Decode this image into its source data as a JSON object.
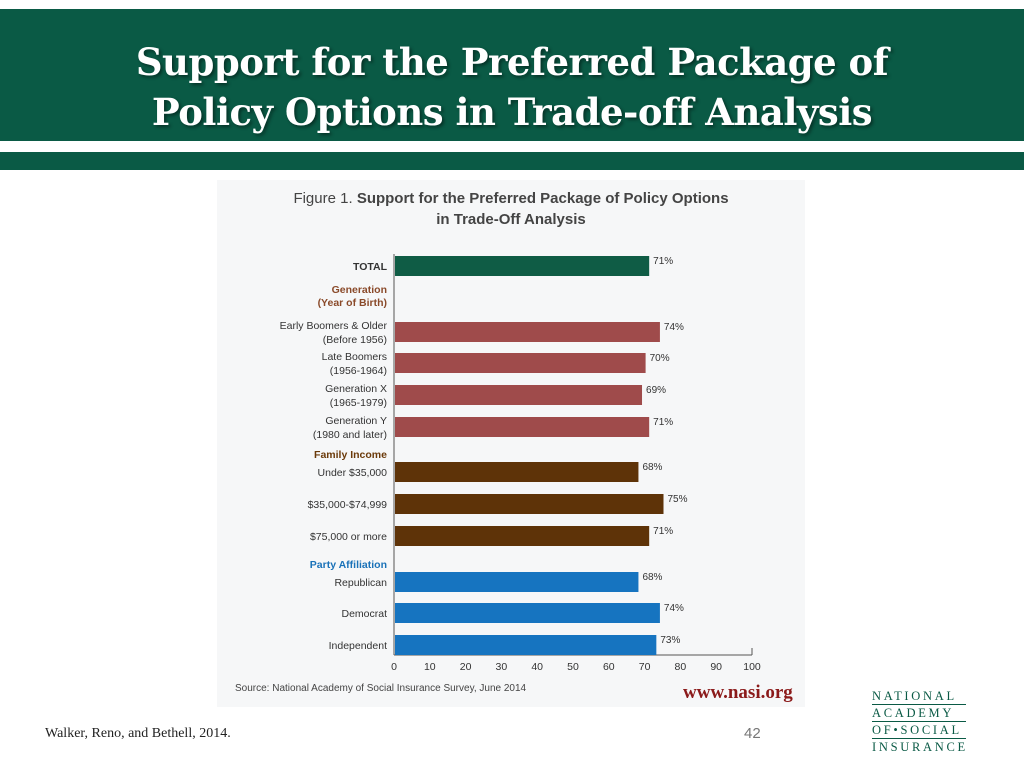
{
  "slide": {
    "title_lines": [
      "Support for the Preferred Package of",
      "Policy Options in Trade-off Analysis"
    ],
    "citation": "Walker, Reno, and Bethell, 2014.",
    "page_number": "42",
    "logo_lines": [
      "NATIONAL",
      "ACADEMY",
      "OF•SOCIAL",
      "INSURANCE"
    ],
    "colors": {
      "header_green": "#0a5a45"
    }
  },
  "figure": {
    "label": "Figure 1.",
    "title_line1": "Support for the Preferred Package of Policy Options",
    "title_line2": "in Trade-Off Analysis",
    "source": "Source: National Academy of Social Insurance Survey, June 2014",
    "url": "www.nasi.org"
  },
  "chart_data": {
    "type": "bar",
    "orientation": "horizontal",
    "title": "Support for the Preferred Package of Policy Options in Trade-Off Analysis",
    "xlim": [
      0,
      100
    ],
    "xticks": [
      0,
      10,
      20,
      30,
      40,
      50,
      60,
      70,
      80,
      90,
      100
    ],
    "groups": [
      {
        "heading": "",
        "color": "#0f5c45",
        "rows": [
          {
            "label": [
              "TOTAL"
            ],
            "value": 71,
            "value_label": "71%",
            "bold": true
          }
        ]
      },
      {
        "heading": [
          "Generation",
          "(Year of Birth)"
        ],
        "heading_color": "#8a4a2a",
        "color": "#9f4b4b",
        "rows": [
          {
            "label": [
              "Early Boomers & Older",
              "(Before 1956)"
            ],
            "value": 74,
            "value_label": "74%"
          },
          {
            "label": [
              "Late Boomers",
              "(1956-1964)"
            ],
            "value": 70,
            "value_label": "70%"
          },
          {
            "label": [
              "Generation X",
              "(1965-1979)"
            ],
            "value": 69,
            "value_label": "69%"
          },
          {
            "label": [
              "Generation Y",
              "(1980 and later)"
            ],
            "value": 71,
            "value_label": "71%"
          }
        ]
      },
      {
        "heading": [
          "Family Income"
        ],
        "heading_color": "#6b3a0a",
        "color": "#5e3308",
        "rows": [
          {
            "label": [
              "Under $35,000"
            ],
            "value": 68,
            "value_label": "68%"
          },
          {
            "label": [
              "$35,000-$74,999"
            ],
            "value": 75,
            "value_label": "75%"
          },
          {
            "label": [
              "$75,000 or more"
            ],
            "value": 71,
            "value_label": "71%"
          }
        ]
      },
      {
        "heading": [
          "Party Affiliation"
        ],
        "heading_color": "#1a72b8",
        "color": "#1674c0",
        "rows": [
          {
            "label": [
              "Republican"
            ],
            "value": 68,
            "value_label": "68%"
          },
          {
            "label": [
              "Democrat"
            ],
            "value": 74,
            "value_label": "74%"
          },
          {
            "label": [
              "Independent"
            ],
            "value": 73,
            "value_label": "73%"
          }
        ]
      }
    ]
  }
}
